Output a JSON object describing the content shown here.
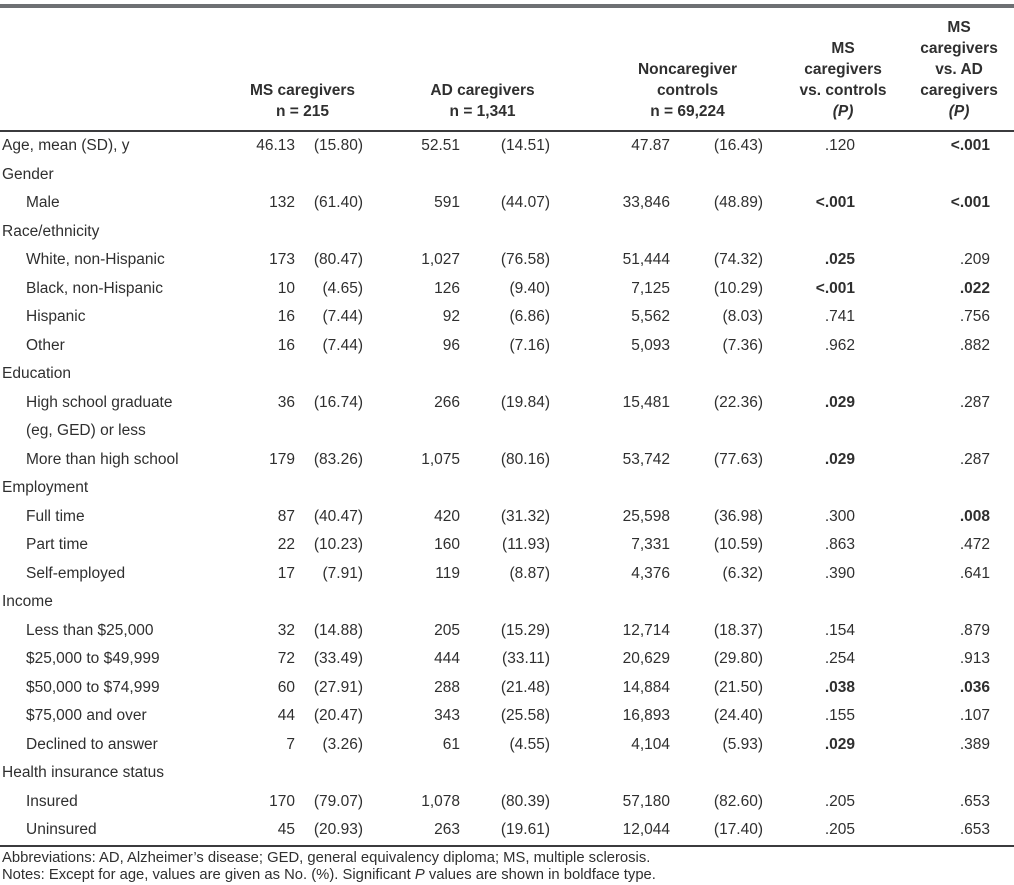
{
  "colors": {
    "top_rule": "#6e7073",
    "thin_rule": "#3b3b3d",
    "text": "#2f2f2f"
  },
  "table": {
    "column_keys": [
      "ms-count",
      "ms-percent",
      "ad-count",
      "ad-percent",
      "control-count",
      "control-percent",
      "p-ms-vs-controls",
      "p-ms-vs-ad"
    ],
    "headers": [
      {
        "lines": "MS caregivers\nn = 215"
      },
      {
        "lines": "AD caregivers\nn = 1,341"
      },
      {
        "lines": "Noncaregiver\ncontrols\nn = 69,224"
      },
      {
        "lines": "MS\ncaregivers\nvs. controls",
        "p": "(P)"
      },
      {
        "lines": "MS\ncaregivers\nvs. AD\ncaregivers",
        "p": "(P)"
      }
    ],
    "rows": [
      {
        "label": "Age, mean (SD), y",
        "indent": false,
        "section": false,
        "values": [
          "46.13",
          "(15.80)",
          "52.51",
          "(14.51)",
          "47.87",
          "(16.43)",
          ".120",
          "<.001"
        ],
        "bold": [
          false,
          true
        ]
      },
      {
        "label": "Gender",
        "section": true
      },
      {
        "label": "Male",
        "indent": true,
        "section": false,
        "values": [
          "132",
          "(61.40)",
          "591",
          "(44.07)",
          "33,846",
          "(48.89)",
          "<.001",
          "<.001"
        ],
        "bold": [
          true,
          true
        ]
      },
      {
        "label": "Race/ethnicity",
        "section": true
      },
      {
        "label": "White, non-Hispanic",
        "indent": true,
        "section": false,
        "values": [
          "173",
          "(80.47)",
          "1,027",
          "(76.58)",
          "51,444",
          "(74.32)",
          ".025",
          ".209"
        ],
        "bold": [
          true,
          false
        ]
      },
      {
        "label": "Black, non-Hispanic",
        "indent": true,
        "section": false,
        "values": [
          "10",
          "(4.65)",
          "126",
          "(9.40)",
          "7,125",
          "(10.29)",
          "<.001",
          ".022"
        ],
        "bold": [
          true,
          true
        ]
      },
      {
        "label": "Hispanic",
        "indent": true,
        "section": false,
        "values": [
          "16",
          "(7.44)",
          "92",
          "(6.86)",
          "5,562",
          "(8.03)",
          ".741",
          ".756"
        ],
        "bold": [
          false,
          false
        ]
      },
      {
        "label": "Other",
        "indent": true,
        "section": false,
        "values": [
          "16",
          "(7.44)",
          "96",
          "(7.16)",
          "5,093",
          "(7.36)",
          ".962",
          ".882"
        ],
        "bold": [
          false,
          false
        ]
      },
      {
        "label": "Education",
        "section": true
      },
      {
        "label": "High school graduate\n(eg, GED) or less",
        "indent": true,
        "section": false,
        "values": [
          "36",
          "(16.74)",
          "266",
          "(19.84)",
          "15,481",
          "(22.36)",
          ".029",
          ".287"
        ],
        "bold": [
          true,
          false
        ]
      },
      {
        "label": "More than high school",
        "indent": true,
        "section": false,
        "values": [
          "179",
          "(83.26)",
          "1,075",
          "(80.16)",
          "53,742",
          "(77.63)",
          ".029",
          ".287"
        ],
        "bold": [
          true,
          false
        ]
      },
      {
        "label": "Employment",
        "section": true
      },
      {
        "label": "Full time",
        "indent": true,
        "section": false,
        "values": [
          "87",
          "(40.47)",
          "420",
          "(31.32)",
          "25,598",
          "(36.98)",
          ".300",
          ".008"
        ],
        "bold": [
          false,
          true
        ]
      },
      {
        "label": "Part time",
        "indent": true,
        "section": false,
        "values": [
          "22",
          "(10.23)",
          "160",
          "(11.93)",
          "7,331",
          "(10.59)",
          ".863",
          ".472"
        ],
        "bold": [
          false,
          false
        ]
      },
      {
        "label": "Self-employed",
        "indent": true,
        "section": false,
        "values": [
          "17",
          "(7.91)",
          "119",
          "(8.87)",
          "4,376",
          "(6.32)",
          ".390",
          ".641"
        ],
        "bold": [
          false,
          false
        ]
      },
      {
        "label": "Income",
        "section": true
      },
      {
        "label": "Less than $25,000",
        "indent": true,
        "section": false,
        "values": [
          "32",
          "(14.88)",
          "205",
          "(15.29)",
          "12,714",
          "(18.37)",
          ".154",
          ".879"
        ],
        "bold": [
          false,
          false
        ]
      },
      {
        "label": "$25,000 to $49,999",
        "indent": true,
        "section": false,
        "values": [
          "72",
          "(33.49)",
          "444",
          "(33.11)",
          "20,629",
          "(29.80)",
          ".254",
          ".913"
        ],
        "bold": [
          false,
          false
        ]
      },
      {
        "label": "$50,000 to $74,999",
        "indent": true,
        "section": false,
        "values": [
          "60",
          "(27.91)",
          "288",
          "(21.48)",
          "14,884",
          "(21.50)",
          ".038",
          ".036"
        ],
        "bold": [
          true,
          true
        ]
      },
      {
        "label": "$75,000 and over",
        "indent": true,
        "section": false,
        "values": [
          "44",
          "(20.47)",
          "343",
          "(25.58)",
          "16,893",
          "(24.40)",
          ".155",
          ".107"
        ],
        "bold": [
          false,
          false
        ]
      },
      {
        "label": "Declined to answer",
        "indent": true,
        "section": false,
        "values": [
          "7",
          "(3.26)",
          "61",
          "(4.55)",
          "4,104",
          "(5.93)",
          ".029",
          ".389"
        ],
        "bold": [
          true,
          false
        ]
      },
      {
        "label": "Health insurance status",
        "section": true
      },
      {
        "label": "Insured",
        "indent": true,
        "section": false,
        "values": [
          "170",
          "(79.07)",
          "1,078",
          "(80.39)",
          "57,180",
          "(82.60)",
          ".205",
          ".653"
        ],
        "bold": [
          false,
          false
        ]
      },
      {
        "label": "Uninsured",
        "indent": true,
        "section": false,
        "values": [
          "45",
          "(20.93)",
          "263",
          "(19.61)",
          "12,044",
          "(17.40)",
          ".205",
          ".653"
        ],
        "bold": [
          false,
          false
        ]
      }
    ]
  },
  "footnotes": {
    "abbreviations": "Abbreviations: AD, Alzheimer’s disease; GED, general equivalency diploma; MS, multiple sclerosis.",
    "notes_parts": [
      "Notes: Except for age, values are given as No. (%). Significant ",
      "P",
      " values are shown in boldface type."
    ]
  }
}
